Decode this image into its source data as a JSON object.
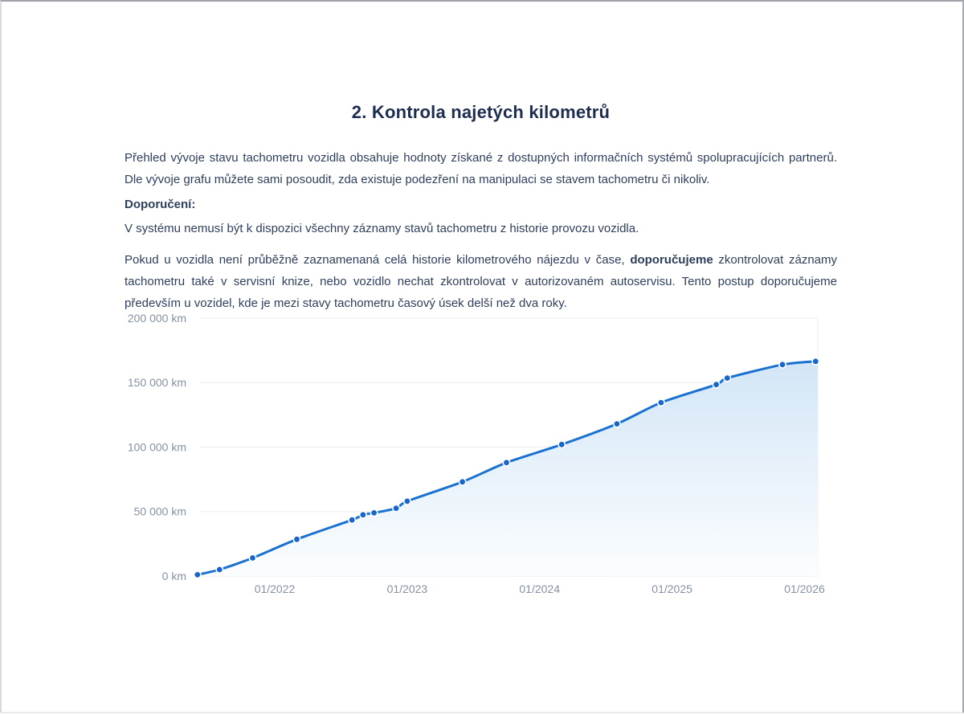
{
  "theme": {
    "background": "#ffffff",
    "title_color": "#1e2d4f",
    "body_color": "#2e3e5b"
  },
  "section": {
    "title": "2. Kontrola najetých kilometrů"
  },
  "content": {
    "intro": "Přehled vývoje stavu tachometru vozidla obsahuje hodnoty získané z dostupných informačních systémů spolupracujících partnerů. Dle vývoje grafu můžete sami posoudit, zda existuje podezření na manipulaci se stavem tachometru či nikoliv.",
    "recommendation_heading": "Doporučení:",
    "recommendation_note": "V systému nemusí být k dispozici všechny záznamy stavů tachometru z historie provozu vozidla.",
    "advice": {
      "part1": "Pokud u vozidla není průběžně zaznamenaná celá historie kilometrového nájezdu v čase, ",
      "bold": "doporučujeme",
      "part2": " zkontrolovat záznamy tachometru také v servisní knize, nebo vozidlo nechat zkontrolovat v autorizovaném autoservisu. Tento postup doporučujeme především u vozidel, kde je mezi stavy tachometru časový úsek delší než dva roky."
    }
  },
  "chart_data": {
    "type": "line",
    "title": "",
    "unit": "km",
    "xlabel": "",
    "ylabel": "",
    "grid_on": true,
    "legend": "none",
    "ylim": [
      0,
      200000
    ],
    "xlim_t": [
      2021.43,
      2026.1
    ],
    "y_ticks": [
      {
        "km": 0,
        "label": "0 km"
      },
      {
        "km": 50000,
        "label": "50 000 km"
      },
      {
        "km": 100000,
        "label": "100 000 km"
      },
      {
        "km": 150000,
        "label": "150 000 km"
      },
      {
        "km": 200000,
        "label": "200 000 km"
      }
    ],
    "x_tick_labels": [
      "01/2022",
      "01/2023",
      "01/2024",
      "01/2025",
      "01/2026"
    ],
    "points": [
      {
        "date": "06/2021",
        "km": 1000
      },
      {
        "date": "08/2021",
        "km": 5000
      },
      {
        "date": "11/2021",
        "km": 14000
      },
      {
        "date": "03/2022",
        "km": 28500
      },
      {
        "date": "08/2022",
        "km": 43500
      },
      {
        "date": "09/2022",
        "km": 47500
      },
      {
        "date": "10/2022",
        "km": 49000
      },
      {
        "date": "12/2022",
        "km": 52500
      },
      {
        "date": "01/2023",
        "km": 58000
      },
      {
        "date": "06/2023",
        "km": 73000
      },
      {
        "date": "10/2023",
        "km": 88000
      },
      {
        "date": "03/2024",
        "km": 102000
      },
      {
        "date": "08/2024",
        "km": 118000
      },
      {
        "date": "12/2024",
        "km": 134500
      },
      {
        "date": "05/2025",
        "km": 148500
      },
      {
        "date": "06/2025",
        "km": 153500
      },
      {
        "date": "11/2025",
        "km": 164000
      },
      {
        "date": "02/2026",
        "km": 166500
      }
    ],
    "line_color": "#1a72d0",
    "point_color": "#1765cd",
    "point_ring_color": "#ffffff",
    "fill_gradient": [
      "#d2e5f6",
      "#fcfeff"
    ],
    "grid_color": "#eceef1",
    "axis_line_color": "#e2e5e9",
    "axis_label_color": "#8591a3"
  }
}
